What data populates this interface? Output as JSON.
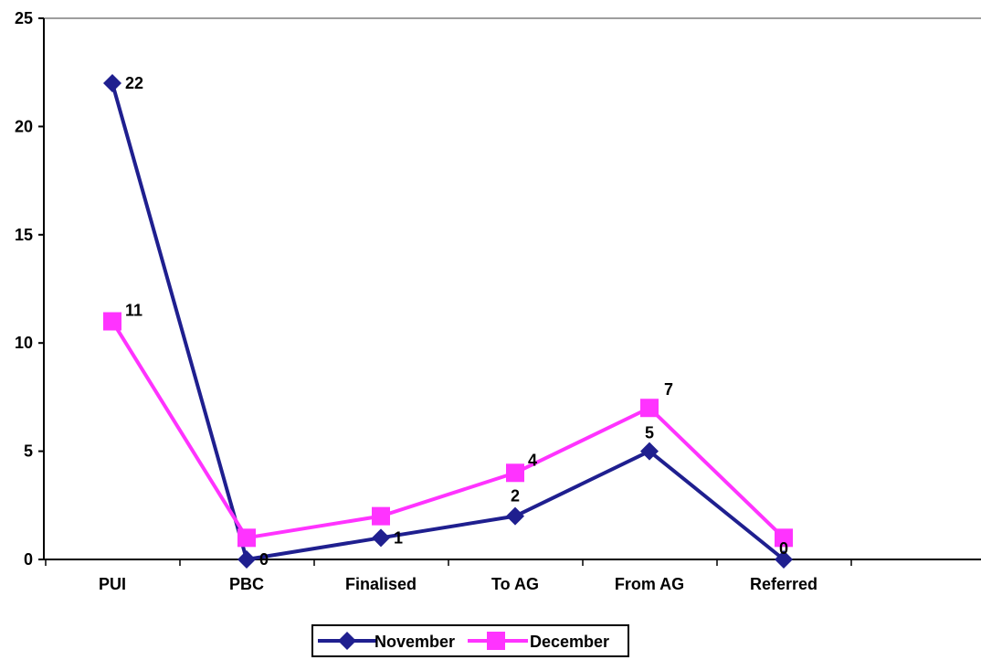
{
  "chart_data": {
    "type": "line",
    "categories": [
      "PUI",
      "PBC",
      "Finalised",
      "To AG",
      "From AG",
      "Referred"
    ],
    "series": [
      {
        "name": "November",
        "values": [
          22,
          0,
          1,
          2,
          5,
          0
        ],
        "labels": [
          "22",
          "0",
          "1",
          "2",
          "5",
          "0"
        ],
        "color": "#1f1f8f",
        "marker": "diamond"
      },
      {
        "name": "December",
        "values": [
          11,
          1,
          2,
          4,
          7,
          1
        ],
        "labels": [
          "11",
          "",
          "",
          "4",
          "7",
          ""
        ],
        "color": "#ff33ff",
        "marker": "square"
      }
    ],
    "yticks": [
      "0",
      "5",
      "10",
      "15",
      "20",
      "25"
    ],
    "ylim": [
      0,
      25
    ],
    "grid": "top line only",
    "legend": "bottom-center"
  }
}
